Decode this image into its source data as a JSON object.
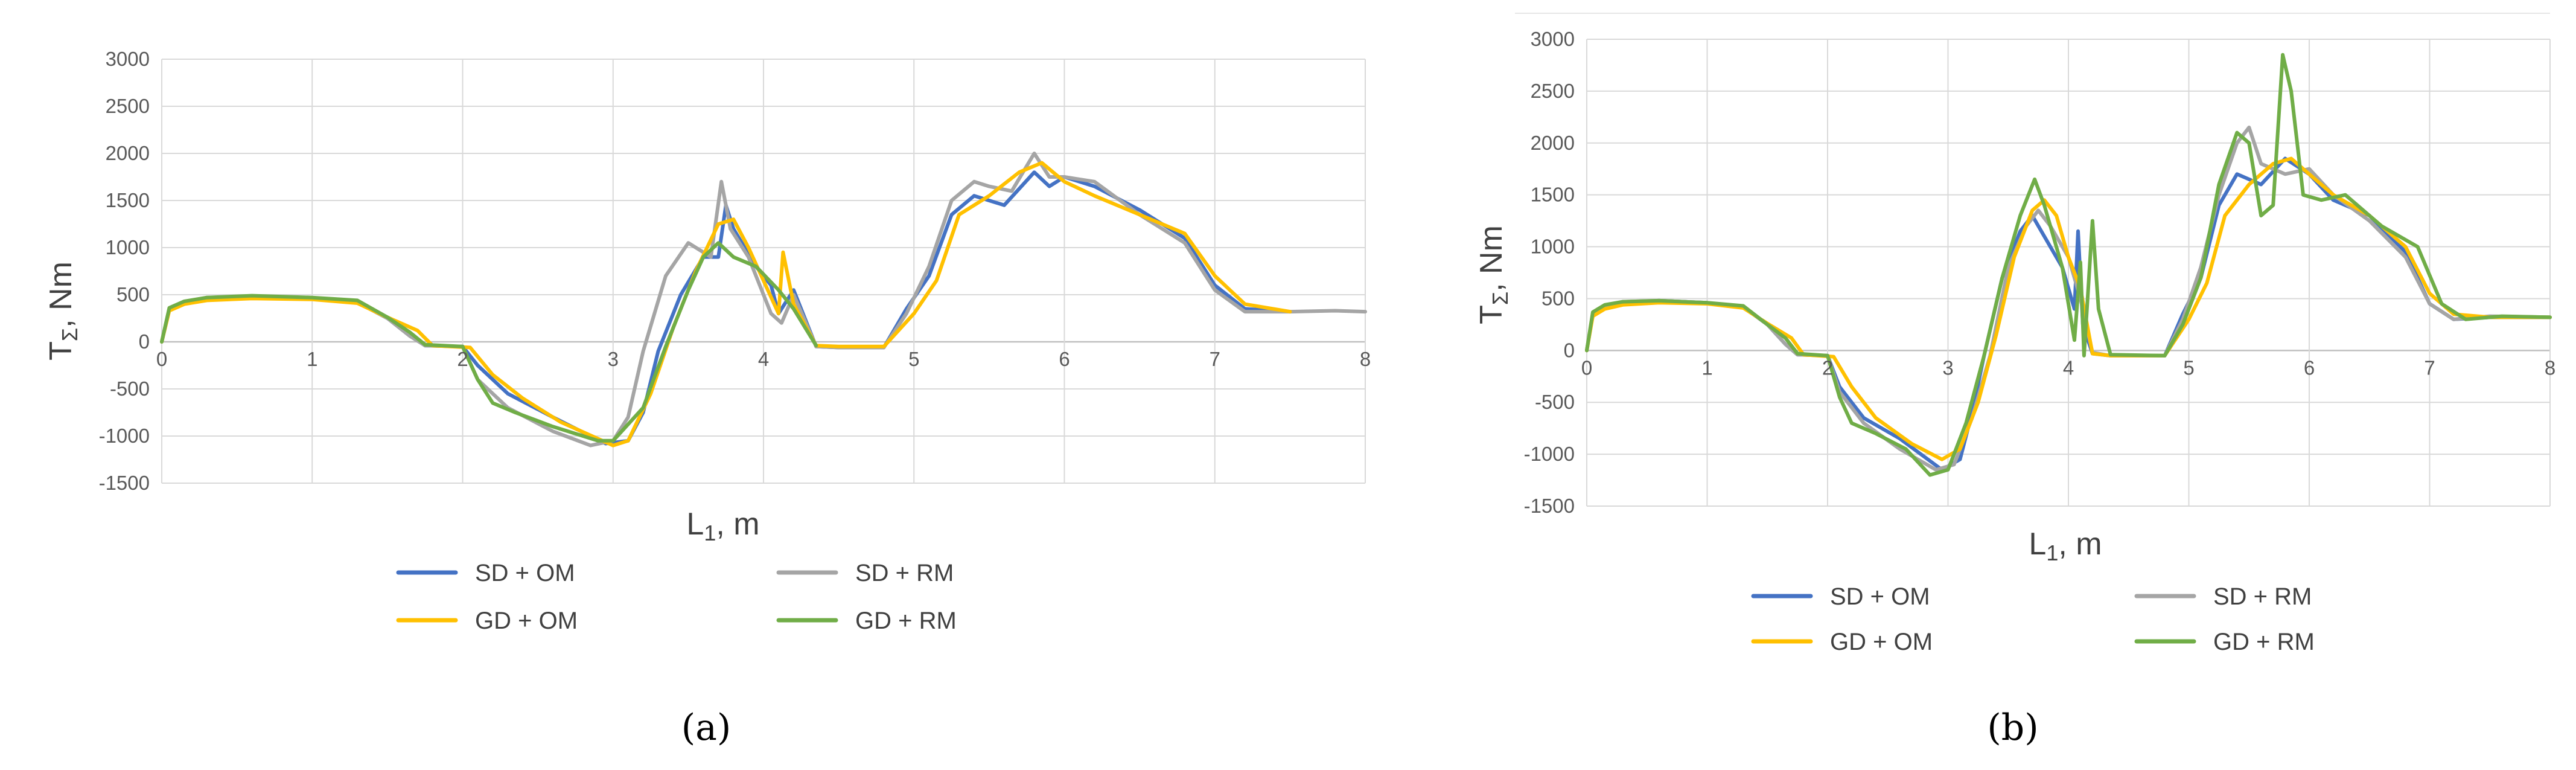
{
  "chart_data": [
    {
      "type": "line",
      "panel_label": "(a)",
      "xlabel": "L",
      "xlabel_sub": "1",
      "xlabel_unit": ", m",
      "ylabel": "T",
      "ylabel_sub": "Σ",
      "ylabel_unit": ", Nm",
      "xlim": [
        0,
        8
      ],
      "ylim": [
        -1500,
        3000
      ],
      "xticks": [
        "0",
        "1",
        "2",
        "3",
        "4",
        "5",
        "6",
        "7",
        "8"
      ],
      "yticks": [
        "-1500",
        "-1000",
        "-500",
        "0",
        "500",
        "1000",
        "1500",
        "2000",
        "2500",
        "3000"
      ],
      "grid": true,
      "legend_position": "bottom",
      "series": [
        {
          "name": "SD + OM",
          "color": "#4472C4",
          "x": [
            0,
            0.05,
            0.15,
            0.3,
            0.6,
            1.0,
            1.3,
            1.5,
            1.65,
            1.75,
            2.0,
            2.1,
            2.3,
            2.6,
            2.95,
            3.1,
            3.2,
            3.3,
            3.45,
            3.6,
            3.7,
            3.75,
            3.8,
            3.95,
            4.05,
            4.1,
            4.2,
            4.35,
            4.5,
            4.8,
            4.95,
            5.1,
            5.25,
            5.4,
            5.6,
            5.8,
            5.9,
            6.0,
            6.2,
            6.5,
            6.8,
            7.0,
            7.2,
            7.5
          ],
          "y": [
            0,
            350,
            420,
            460,
            480,
            460,
            420,
            250,
            80,
            -40,
            -50,
            -250,
            -550,
            -800,
            -1080,
            -1050,
            -750,
            -100,
            500,
            900,
            900,
            1450,
            1200,
            800,
            600,
            300,
            550,
            -50,
            -60,
            -60,
            350,
            700,
            1350,
            1550,
            1450,
            1800,
            1650,
            1750,
            1650,
            1400,
            1100,
            600,
            350,
            320
          ]
        },
        {
          "name": "SD + RM",
          "color": "#A5A5A5",
          "x": [
            0,
            0.05,
            0.15,
            0.3,
            0.6,
            1.0,
            1.3,
            1.5,
            1.65,
            1.75,
            2.0,
            2.1,
            2.3,
            2.6,
            2.85,
            3.0,
            3.1,
            3.2,
            3.35,
            3.5,
            3.65,
            3.72,
            3.78,
            3.9,
            4.05,
            4.12,
            4.2,
            4.35,
            4.5,
            4.8,
            4.95,
            5.1,
            5.25,
            5.4,
            5.5,
            5.65,
            5.8,
            5.9,
            6.0,
            6.2,
            6.5,
            6.8,
            7.0,
            7.2,
            7.5,
            7.8,
            8.0
          ],
          "y": [
            0,
            350,
            420,
            470,
            480,
            460,
            420,
            250,
            60,
            -40,
            -50,
            -400,
            -700,
            -950,
            -1100,
            -1050,
            -800,
            -100,
            700,
            1050,
            900,
            1700,
            1200,
            900,
            300,
            200,
            500,
            -50,
            -60,
            -60,
            300,
            800,
            1500,
            1700,
            1650,
            1600,
            2000,
            1750,
            1750,
            1700,
            1350,
            1050,
            550,
            320,
            320,
            330,
            320
          ]
        },
        {
          "name": "GD + OM",
          "color": "#FFC000",
          "x": [
            0,
            0.05,
            0.15,
            0.3,
            0.6,
            1.0,
            1.3,
            1.5,
            1.7,
            1.8,
            2.05,
            2.2,
            2.4,
            2.65,
            3.0,
            3.1,
            3.25,
            3.4,
            3.55,
            3.7,
            3.8,
            3.9,
            4.0,
            4.1,
            4.13,
            4.2,
            4.35,
            4.5,
            4.8,
            5.0,
            5.15,
            5.3,
            5.5,
            5.7,
            5.85,
            6.0,
            6.2,
            6.5,
            6.8,
            7.0,
            7.2,
            7.5
          ],
          "y": [
            0,
            330,
            400,
            440,
            460,
            450,
            410,
            260,
            120,
            -40,
            -60,
            -350,
            -600,
            -850,
            -1100,
            -1050,
            -550,
            150,
            750,
            1250,
            1300,
            1000,
            650,
            300,
            950,
            400,
            -40,
            -50,
            -50,
            300,
            650,
            1350,
            1550,
            1800,
            1900,
            1700,
            1550,
            1350,
            1150,
            700,
            400,
            320
          ]
        },
        {
          "name": "GD + RM",
          "color": "#70AD47",
          "x": [
            0,
            0.05,
            0.15,
            0.3,
            0.6,
            1.0,
            1.3,
            1.5,
            1.65,
            1.75,
            2.0,
            2.1,
            2.2,
            2.35,
            2.6,
            2.9,
            3.0,
            3.2,
            3.35,
            3.5,
            3.6,
            3.7,
            3.8,
            3.95,
            4.1,
            4.2,
            4.35
          ],
          "y": [
            0,
            360,
            430,
            470,
            490,
            470,
            440,
            260,
            100,
            -30,
            -50,
            -400,
            -650,
            -750,
            -900,
            -1050,
            -1050,
            -700,
            -50,
            550,
            900,
            1050,
            900,
            800,
            550,
            350,
            -40
          ]
        }
      ]
    },
    {
      "type": "line",
      "panel_label": "(b)",
      "xlabel": "L",
      "xlabel_sub": "1",
      "xlabel_unit": ", m",
      "ylabel": "T",
      "ylabel_sub": "Σ",
      "ylabel_unit": ", Nm",
      "xlim": [
        0,
        8
      ],
      "ylim": [
        -1500,
        3000
      ],
      "xticks": [
        "0",
        "1",
        "2",
        "3",
        "4",
        "5",
        "6",
        "7",
        "8"
      ],
      "yticks": [
        "-1500",
        "-1000",
        "-500",
        "0",
        "500",
        "1000",
        "1500",
        "2000",
        "2500",
        "3000"
      ],
      "grid": true,
      "legend_position": "bottom",
      "series": [
        {
          "name": "SD + OM",
          "color": "#4472C4",
          "x": [
            0,
            0.05,
            0.15,
            0.3,
            0.6,
            1.0,
            1.3,
            1.5,
            1.65,
            1.75,
            2.0,
            2.1,
            2.3,
            2.6,
            2.95,
            3.1,
            3.2,
            3.3,
            3.45,
            3.6,
            3.7,
            3.8,
            3.95,
            4.05,
            4.08,
            4.12,
            4.2,
            4.35,
            4.8,
            4.95,
            5.1,
            5.25,
            5.4,
            5.6,
            5.8,
            6.0,
            6.2,
            6.5,
            6.8,
            7.0,
            7.2,
            7.5,
            8.0
          ],
          "y": [
            0,
            350,
            420,
            460,
            480,
            460,
            420,
            250,
            60,
            -40,
            -50,
            -350,
            -650,
            -850,
            -1150,
            -1050,
            -600,
            -50,
            700,
            1150,
            1300,
            1100,
            800,
            400,
            1150,
            250,
            -30,
            -50,
            -50,
            350,
            700,
            1400,
            1700,
            1600,
            1850,
            1700,
            1450,
            1300,
            950,
            450,
            300,
            320,
            320
          ]
        },
        {
          "name": "SD + RM",
          "color": "#A5A5A5",
          "x": [
            0,
            0.05,
            0.15,
            0.3,
            0.6,
            1.0,
            1.3,
            1.5,
            1.65,
            1.75,
            2.0,
            2.1,
            2.3,
            2.6,
            2.9,
            3.05,
            3.2,
            3.35,
            3.5,
            3.65,
            3.75,
            3.85,
            4.0,
            4.1,
            4.2,
            4.35,
            4.8,
            4.95,
            5.1,
            5.25,
            5.4,
            5.5,
            5.6,
            5.8,
            6.0,
            6.2,
            6.5,
            6.8,
            7.0,
            7.2,
            7.5,
            8.0
          ],
          "y": [
            0,
            350,
            420,
            470,
            480,
            460,
            420,
            250,
            60,
            -40,
            -50,
            -400,
            -700,
            -950,
            -1150,
            -1100,
            -650,
            -50,
            800,
            1200,
            1350,
            1200,
            900,
            500,
            -20,
            -50,
            -50,
            300,
            800,
            1500,
            2000,
            2150,
            1800,
            1700,
            1750,
            1500,
            1250,
            900,
            450,
            300,
            330,
            320
          ]
        },
        {
          "name": "GD + OM",
          "color": "#FFC000",
          "x": [
            0,
            0.05,
            0.15,
            0.3,
            0.6,
            1.0,
            1.3,
            1.5,
            1.7,
            1.8,
            2.05,
            2.2,
            2.4,
            2.7,
            2.95,
            3.1,
            3.25,
            3.4,
            3.55,
            3.7,
            3.8,
            3.9,
            4.0,
            4.1,
            4.2,
            4.35,
            4.8,
            5.0,
            5.15,
            5.3,
            5.5,
            5.7,
            5.85,
            6.0,
            6.2,
            6.5,
            6.8,
            7.0,
            7.2,
            7.5,
            8.0
          ],
          "y": [
            0,
            330,
            400,
            440,
            460,
            450,
            410,
            260,
            120,
            -40,
            -60,
            -350,
            -650,
            -900,
            -1050,
            -950,
            -500,
            150,
            900,
            1350,
            1450,
            1300,
            900,
            600,
            -30,
            -50,
            -50,
            300,
            650,
            1300,
            1600,
            1800,
            1850,
            1700,
            1500,
            1300,
            1000,
            550,
            350,
            320,
            320
          ]
        },
        {
          "name": "GD + RM",
          "color": "#70AD47",
          "x": [
            0,
            0.05,
            0.15,
            0.3,
            0.6,
            1.0,
            1.3,
            1.5,
            1.65,
            1.75,
            2.0,
            2.1,
            2.2,
            2.4,
            2.65,
            2.85,
            3.0,
            3.15,
            3.3,
            3.45,
            3.6,
            3.72,
            3.8,
            3.95,
            4.05,
            4.1,
            4.13,
            4.2,
            4.25,
            4.35,
            4.8,
            4.95,
            5.1,
            5.25,
            5.4,
            5.5,
            5.6,
            5.7,
            5.78,
            5.85,
            5.95,
            6.1,
            6.3,
            6.6,
            6.9,
            7.1,
            7.3,
            7.6,
            8.0
          ],
          "y": [
            0,
            370,
            440,
            470,
            480,
            460,
            430,
            250,
            120,
            -30,
            -50,
            -450,
            -700,
            -800,
            -950,
            -1200,
            -1150,
            -700,
            -50,
            700,
            1300,
            1650,
            1400,
            800,
            100,
            850,
            -50,
            1250,
            400,
            -40,
            -50,
            250,
            700,
            1600,
            2100,
            2000,
            1300,
            1400,
            2850,
            2500,
            1500,
            1450,
            1500,
            1200,
            1000,
            450,
            300,
            330,
            320
          ]
        }
      ]
    }
  ]
}
